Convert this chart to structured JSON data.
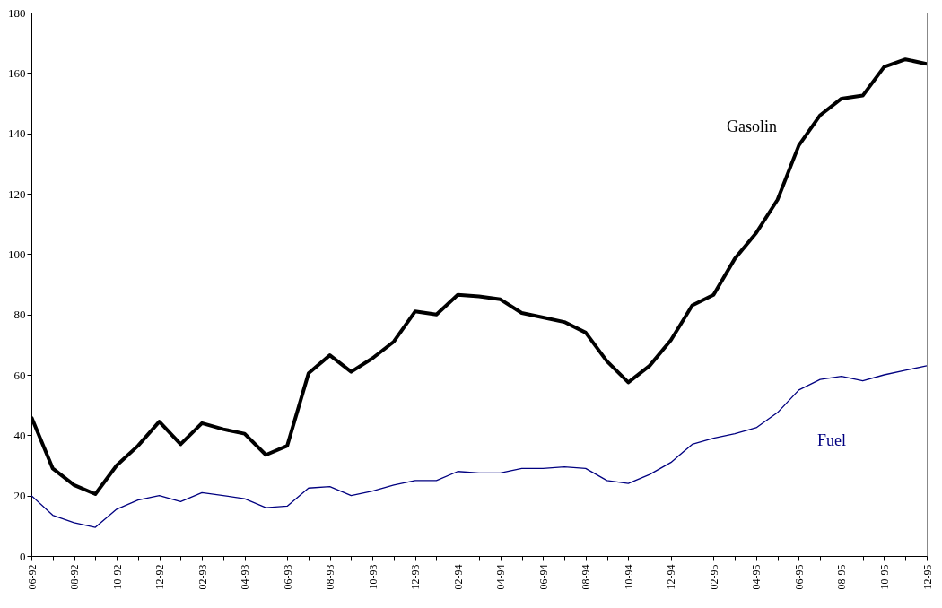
{
  "chart_data": {
    "type": "line",
    "categories": [
      "06-92",
      null,
      "08-92",
      null,
      "10-92",
      null,
      "12-92",
      null,
      "02-93",
      null,
      "04-93",
      null,
      "06-93",
      null,
      "08-93",
      null,
      "10-93",
      null,
      "12-93",
      null,
      "02-94",
      null,
      "04-94",
      null,
      "06-94",
      null,
      "08-94",
      null,
      "10-94",
      null,
      "12-94",
      null,
      "02-95",
      null,
      "04-95",
      null,
      "06-95",
      null,
      "08-95",
      null,
      "10-95",
      null,
      "12-95"
    ],
    "series": [
      {
        "name": "Gasolin",
        "color": "#000000",
        "values": [
          46,
          29,
          23.5,
          20.5,
          30,
          36.5,
          44.5,
          37,
          44,
          42,
          40.5,
          33.5,
          36.5,
          60.5,
          66.5,
          61,
          65.5,
          71,
          81,
          80,
          86.5,
          86,
          85,
          80.5,
          79,
          77.5,
          74,
          64.5,
          57.5,
          63,
          71.5,
          83,
          86.5,
          98.5,
          107,
          118,
          136,
          146,
          151.5,
          152.5,
          162,
          164.5,
          163
        ]
      },
      {
        "name": "Fuel",
        "color": "#000080",
        "values": [
          20,
          13.5,
          11,
          9.5,
          15.5,
          18.5,
          20,
          18,
          21,
          20,
          19,
          16,
          16.5,
          22.5,
          23,
          20,
          21.5,
          23.5,
          25,
          25,
          28,
          27.5,
          27.5,
          29,
          29,
          29.5,
          29,
          25,
          24,
          27,
          31,
          37,
          39,
          40.5,
          42.5,
          47.5,
          55,
          58.5,
          59.5,
          58,
          60,
          61.5,
          63
        ]
      }
    ],
    "ylim": [
      0,
      180
    ],
    "yticks": [
      0,
      20,
      40,
      60,
      80,
      100,
      120,
      140,
      160,
      180
    ],
    "grid": false,
    "legend": false,
    "marker": "none",
    "line_style": "solid"
  }
}
